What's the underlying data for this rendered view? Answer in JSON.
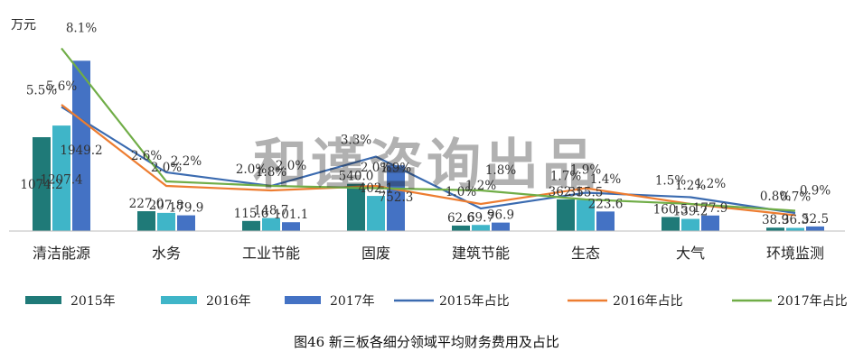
{
  "chart_data": {
    "type": "bar",
    "unit_label": "万元",
    "categories": [
      "清洁能源",
      "水务",
      "工业节能",
      "固废",
      "建筑节能",
      "生态",
      "大气",
      "环境监测"
    ],
    "series": [
      {
        "name": "2015年",
        "kind": "bar",
        "color": "#1f7a78",
        "values": [
          1074.2,
          227.0,
          115.6,
          540.0,
          62.6,
          362.1,
          160.5,
          38.9
        ]
      },
      {
        "name": "2016年",
        "kind": "bar",
        "color": "#3fb5c8",
        "values": [
          1207.4,
          207.8,
          148.7,
          402.1,
          69.7,
          355.5,
          139.2,
          36.3
        ]
      },
      {
        "name": "2017年",
        "kind": "bar",
        "color": "#4472c4",
        "values": [
          1949.2,
          179.9,
          101.1,
          752.3,
          96.9,
          223.6,
          177.9,
          52.5
        ]
      },
      {
        "name": "2015年占比",
        "kind": "line",
        "color": "#3b6bb0",
        "values": [
          5.5,
          2.6,
          2.0,
          3.3,
          1.0,
          1.7,
          1.5,
          0.8
        ],
        "labels": [
          "5.5%",
          "2.6%",
          "2.0%",
          "3.3%",
          "1.0%",
          "1.7%",
          "1.5%",
          "0.8%"
        ]
      },
      {
        "name": "2016年占比",
        "kind": "line",
        "color": "#ed7d31",
        "values": [
          5.6,
          2.0,
          1.8,
          2.0,
          1.2,
          1.9,
          1.2,
          0.7
        ],
        "labels": [
          "5.6%",
          "2.0%",
          "1.8%",
          "2.0%",
          "1.2%",
          "1.9%",
          "1.2%",
          "0.7%"
        ]
      },
      {
        "name": "2017年占比",
        "kind": "line",
        "color": "#70ad47",
        "values": [
          8.1,
          2.2,
          2.0,
          1.9,
          1.8,
          1.4,
          1.2,
          0.9
        ],
        "labels": [
          "8.1%",
          "2.2%",
          "2.0%",
          "1.9%",
          "1.8%",
          "1.4%",
          "1.2%",
          "0.9%"
        ]
      }
    ],
    "legend_position": "bottom",
    "grid": false
  },
  "caption": "图46 新三板各细分领域平均财务费用及占比",
  "watermark": "和谨咨询出品"
}
